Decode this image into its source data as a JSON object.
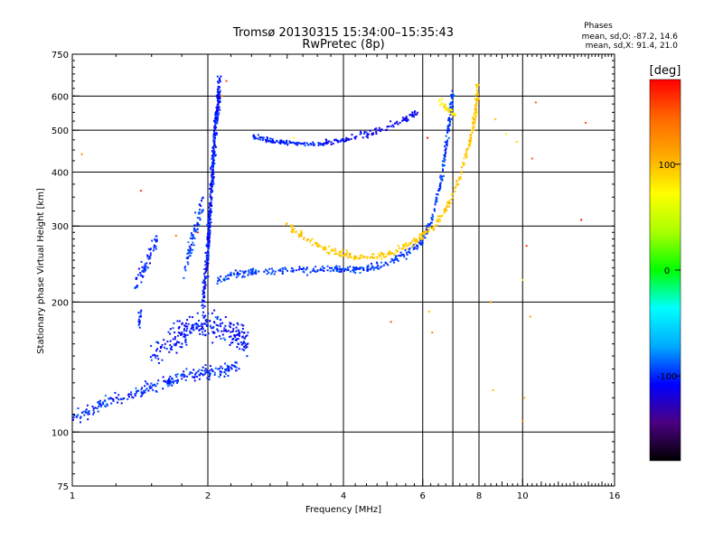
{
  "chart_data": {
    "type": "scatter",
    "title": "Tromsø 20130315 15:34:00–15:35:43",
    "subtitle": "RwPretec (8p)",
    "xlabel": "Frequency [MHz]",
    "ylabel": "Stationary phase Virtual Height [km]",
    "x_scale": "log2",
    "y_scale": "log",
    "xlim": [
      1,
      16
    ],
    "ylim": [
      75,
      750
    ],
    "x_ticks": [
      1,
      2,
      4,
      6,
      8,
      10,
      16
    ],
    "y_ticks": [
      75,
      100,
      200,
      300,
      400,
      500,
      600,
      750
    ],
    "grid_x": [
      2,
      4,
      6,
      7,
      8,
      10
    ],
    "grid_y": [
      100,
      200,
      300,
      400,
      500,
      600
    ],
    "stats": {
      "heading": "Phases",
      "line_o": "mean, sd,O: -87.2, 14.6",
      "line_x": "mean, sd,X:  91.4, 21.0"
    },
    "colorbar": {
      "label": "[deg]",
      "range": [
        -180,
        180
      ],
      "ticks": [
        100,
        0,
        -100
      ],
      "colors": [
        "#000000",
        "#4b0082",
        "#0000ff",
        "#00aaff",
        "#00ffff",
        "#00ff00",
        "#aaff00",
        "#ffff00",
        "#ffaa00",
        "#ff6600",
        "#ff0000"
      ]
    },
    "series": [
      {
        "type": "band",
        "values": [
          [
            1.0,
            108
          ],
          [
            1.1,
            112
          ],
          [
            1.2,
            118
          ],
          [
            1.35,
            122
          ],
          [
            1.5,
            127
          ],
          [
            1.7,
            133
          ],
          [
            1.9,
            137
          ],
          [
            2.1,
            139
          ],
          [
            2.35,
            141
          ]
        ],
        "spread": 0.05,
        "phase": -100,
        "jitter": 25,
        "n": 260
      },
      {
        "type": "band",
        "values": [
          [
            1.5,
            150
          ],
          [
            1.65,
            163
          ],
          [
            1.8,
            172
          ],
          [
            1.95,
            178
          ],
          [
            2.1,
            176
          ],
          [
            2.3,
            170
          ],
          [
            2.45,
            160
          ]
        ],
        "spread": 0.11,
        "phase": -105,
        "jitter": 25,
        "n": 260
      },
      {
        "type": "band",
        "values": [
          [
            1.38,
            218
          ],
          [
            1.45,
            240
          ],
          [
            1.5,
            260
          ],
          [
            1.55,
            280
          ]
        ],
        "spread": 0.07,
        "phase": -100,
        "jitter": 20,
        "n": 60
      },
      {
        "type": "band",
        "values": [
          [
            1.4,
            175
          ],
          [
            1.42,
            190
          ]
        ],
        "spread": 0.04,
        "phase": -100,
        "jitter": 20,
        "n": 15
      },
      {
        "type": "band",
        "values": [
          [
            1.78,
            240
          ],
          [
            1.85,
            280
          ],
          [
            1.9,
            310
          ],
          [
            1.95,
            340
          ]
        ],
        "spread": 0.08,
        "phase": -95,
        "jitter": 25,
        "n": 70
      },
      {
        "type": "band",
        "values": [
          [
            1.95,
            200
          ],
          [
            2.0,
            260
          ],
          [
            2.02,
            320
          ],
          [
            2.05,
            400
          ],
          [
            2.07,
            480
          ],
          [
            2.1,
            560
          ],
          [
            2.12,
            640
          ]
        ],
        "spread": 0.1,
        "phase": -105,
        "jitter": 25,
        "n": 420
      },
      {
        "type": "band",
        "values": [
          [
            2.1,
            225
          ],
          [
            2.3,
            232
          ],
          [
            2.6,
            235
          ],
          [
            3.0,
            236
          ],
          [
            3.5,
            237
          ],
          [
            4.0,
            238
          ],
          [
            4.5,
            240
          ],
          [
            5.0,
            245
          ],
          [
            5.5,
            258
          ],
          [
            6.0,
            278
          ],
          [
            6.3,
            310
          ],
          [
            6.55,
            370
          ],
          [
            6.75,
            450
          ],
          [
            6.9,
            540
          ],
          [
            7.0,
            610
          ]
        ],
        "spread": 0.03,
        "phase": -95,
        "jitter": 20,
        "n": 420
      },
      {
        "type": "band",
        "values": [
          [
            2.5,
            485
          ],
          [
            2.8,
            470
          ],
          [
            3.2,
            466
          ],
          [
            3.6,
            465
          ]
        ],
        "spread": 0.02,
        "phase": -100,
        "jitter": 15,
        "n": 100
      },
      {
        "type": "band",
        "values": [
          [
            3.6,
            467
          ],
          [
            4.2,
            480
          ],
          [
            4.8,
            500
          ],
          [
            5.5,
            530
          ],
          [
            5.9,
            555
          ]
        ],
        "spread": 0.025,
        "phase": -110,
        "jitter": 20,
        "n": 110
      },
      {
        "type": "band",
        "values": [
          [
            3.0,
            300
          ],
          [
            3.3,
            280
          ],
          [
            3.7,
            264
          ],
          [
            4.2,
            255
          ],
          [
            4.7,
            254
          ],
          [
            5.2,
            262
          ],
          [
            5.8,
            278
          ],
          [
            6.4,
            300
          ],
          [
            6.9,
            340
          ],
          [
            7.3,
            400
          ],
          [
            7.6,
            460
          ],
          [
            7.8,
            520
          ],
          [
            7.9,
            580
          ],
          [
            7.95,
            650
          ]
        ],
        "spread": 0.03,
        "phase": 95,
        "jitter": 15,
        "n": 360
      },
      {
        "type": "band",
        "values": [
          [
            6.5,
            590
          ],
          [
            6.8,
            560
          ],
          [
            7.1,
            540
          ]
        ],
        "spread": 0.03,
        "phase": 80,
        "jitter": 20,
        "n": 30
      },
      {
        "type": "points",
        "values": [
          [
            1.05,
            440
          ],
          [
            1.42,
            362
          ],
          [
            2.15,
            600
          ],
          [
            2.2,
            650
          ],
          [
            6.2,
            190
          ],
          [
            6.15,
            480
          ],
          [
            8.5,
            200
          ],
          [
            8.7,
            530
          ],
          [
            9.2,
            490
          ],
          [
            9.7,
            470
          ],
          [
            10.7,
            580
          ],
          [
            10.5,
            430
          ],
          [
            10.2,
            270
          ],
          [
            10.0,
            225
          ],
          [
            10.4,
            185
          ],
          [
            8.6,
            125
          ],
          [
            10.1,
            120
          ],
          [
            10.0,
            106
          ],
          [
            13.5,
            310
          ],
          [
            13.8,
            520
          ],
          [
            5.1,
            180
          ],
          [
            6.3,
            170
          ],
          [
            3.1,
            480
          ],
          [
            1.9,
            290
          ],
          [
            1.7,
            285
          ]
        ],
        "phase": 140,
        "jitter": 120
      }
    ]
  }
}
